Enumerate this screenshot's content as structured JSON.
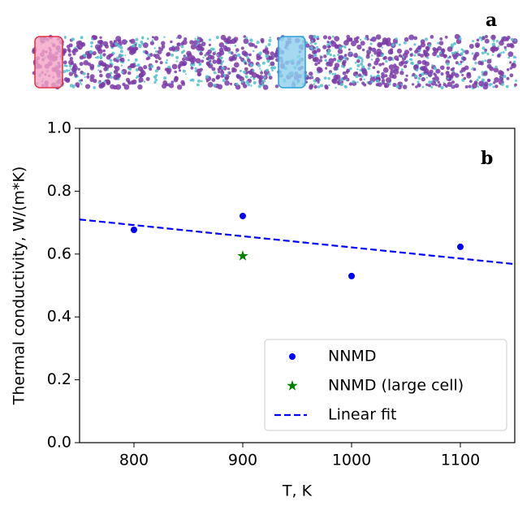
{
  "chart_data": {
    "type": "scatter",
    "panel_labels": [
      "a",
      "b"
    ],
    "xlabel": "T, K",
    "ylabel": "Thermal conductivity, W/(m*K)",
    "xlim": [
      750,
      1150
    ],
    "xticks": [
      800,
      900,
      1000,
      1100
    ],
    "ylim": [
      0,
      1
    ],
    "yticks": [
      {
        "value": 0,
        "label": "0.0"
      },
      {
        "value": 0.2,
        "label": "0.2"
      },
      {
        "value": 0.4,
        "label": "0.4"
      },
      {
        "value": 0.6,
        "label": "0.6"
      },
      {
        "value": 0.8,
        "label": "0.8"
      },
      {
        "value": 1,
        "label": "1.0"
      }
    ],
    "legend": "lower right",
    "series": [
      {
        "name": "NNMD",
        "color": "#0000ff",
        "marker": "circle",
        "x": [
          800,
          900,
          1000,
          1100
        ],
        "values": [
          0.677,
          0.721,
          0.53,
          0.623
        ]
      },
      {
        "name": "NNMD (large cell)",
        "color": "#008000",
        "marker": "star",
        "x": [
          900
        ],
        "values": [
          0.594
        ]
      },
      {
        "name": "Linear fit",
        "color": "#0000ff",
        "marker": "dashed-line",
        "x": [
          750,
          1150
        ],
        "values": [
          0.71,
          0.568
        ]
      }
    ]
  }
}
